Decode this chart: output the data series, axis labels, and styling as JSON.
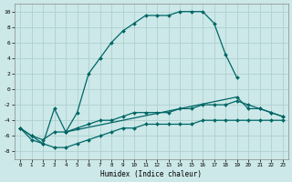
{
  "xlabel": "Humidex (Indice chaleur)",
  "x_values": [
    0,
    1,
    2,
    3,
    4,
    5,
    6,
    7,
    8,
    9,
    10,
    11,
    12,
    13,
    14,
    15,
    16,
    17,
    18,
    19,
    20,
    21,
    22,
    23
  ],
  "line_main_x": [
    0,
    1,
    2,
    3,
    4,
    5,
    6,
    7,
    8,
    9,
    10,
    11,
    12,
    13,
    14,
    15,
    16,
    17,
    18,
    19
  ],
  "line_main_y": [
    -5,
    -6,
    -7,
    -2.5,
    -5.5,
    -3,
    2,
    4,
    6,
    7.5,
    8.5,
    9.5,
    9.5,
    9.5,
    10,
    10,
    10,
    8.5,
    4.5,
    1.5
  ],
  "line_upper_x": [
    4,
    19,
    20,
    21,
    22,
    23
  ],
  "line_upper_y": [
    -5.5,
    -1,
    -2.5,
    -2.5,
    -3,
    -3.5
  ],
  "line_mid_x": [
    0,
    1,
    2,
    3,
    4,
    5,
    6,
    7,
    8,
    9,
    10,
    11,
    12,
    13,
    14,
    15,
    16,
    17,
    18,
    19,
    20,
    21,
    22,
    23
  ],
  "line_mid_y": [
    -5,
    -6,
    -6.5,
    -5.5,
    -5.5,
    -5,
    -4.5,
    -4,
    -4,
    -3.5,
    -3,
    -3,
    -3,
    -3,
    -2.5,
    -2.5,
    -2,
    -2,
    -2,
    -1.5,
    -2,
    -2.5,
    -3,
    -3.5
  ],
  "line_low_x": [
    0,
    1,
    2,
    3,
    4,
    5,
    6,
    7,
    8,
    9,
    10,
    11,
    12,
    13,
    14,
    15,
    16,
    17,
    18,
    19,
    20,
    21,
    22,
    23
  ],
  "line_low_y": [
    -5,
    -6.5,
    -7,
    -7.5,
    -7.5,
    -7,
    -6.5,
    -6,
    -5.5,
    -5,
    -5,
    -4.5,
    -4.5,
    -4.5,
    -4.5,
    -4.5,
    -4,
    -4,
    -4,
    -4,
    -4,
    -4,
    -4,
    -4
  ],
  "bg_color": "#cce8e8",
  "line_color": "#006666",
  "grid_color": "#b0d0d0",
  "xlim": [
    -0.5,
    23.5
  ],
  "ylim": [
    -9,
    11
  ],
  "yticks": [
    -8,
    -6,
    -4,
    -2,
    0,
    2,
    4,
    6,
    8,
    10
  ],
  "xticks": [
    0,
    1,
    2,
    3,
    4,
    5,
    6,
    7,
    8,
    9,
    10,
    11,
    12,
    13,
    14,
    15,
    16,
    17,
    18,
    19,
    20,
    21,
    22,
    23
  ]
}
